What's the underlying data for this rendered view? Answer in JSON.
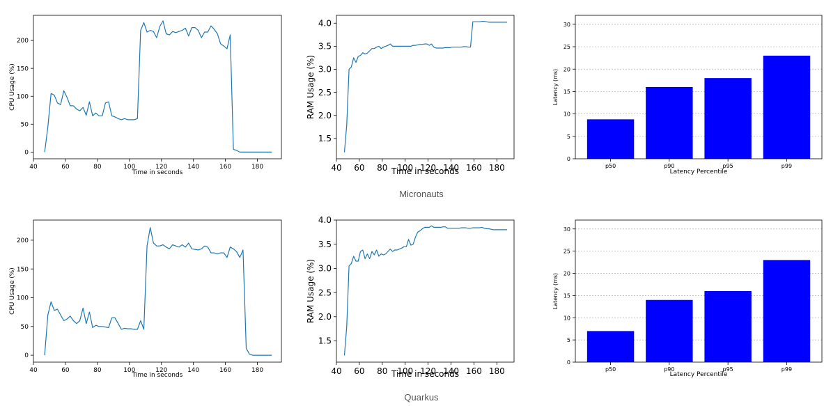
{
  "captions": [
    "Micronauts",
    "Quarkus"
  ],
  "colors": {
    "line": "#1f77b4",
    "bar": "#0000ff",
    "grid": "#b0b0b0"
  },
  "chart_data": [
    {
      "type": "line",
      "group": "Micronauts",
      "xlabel": "Time in seconds",
      "ylabel": "CPU Usage (%)",
      "xlim": [
        40,
        195
      ],
      "ylim": [
        -12,
        245
      ],
      "xticks": [
        40,
        60,
        80,
        100,
        120,
        140,
        160,
        180
      ],
      "yticks": [
        0,
        50,
        100,
        150,
        200
      ],
      "x": [
        47,
        49,
        51,
        53,
        55,
        57,
        59,
        61,
        63,
        65,
        67,
        69,
        71,
        73,
        75,
        77,
        79,
        81,
        83,
        85,
        87,
        89,
        91,
        93,
        95,
        97,
        99,
        101,
        103,
        105,
        107,
        109,
        111,
        113,
        115,
        117,
        119,
        121,
        123,
        125,
        127,
        129,
        131,
        133,
        135,
        137,
        139,
        141,
        143,
        145,
        147,
        149,
        151,
        153,
        155,
        157,
        159,
        161,
        163,
        165,
        167,
        169,
        171,
        173,
        175,
        177,
        179,
        181,
        183,
        185,
        187,
        189
      ],
      "y": [
        0,
        45,
        105,
        102,
        88,
        85,
        110,
        98,
        83,
        83,
        77,
        74,
        80,
        66,
        90,
        65,
        70,
        65,
        65,
        88,
        90,
        65,
        63,
        60,
        58,
        60,
        58,
        58,
        58,
        60,
        218,
        232,
        215,
        218,
        216,
        205,
        225,
        235,
        212,
        210,
        216,
        214,
        216,
        218,
        222,
        208,
        223,
        223,
        218,
        205,
        215,
        215,
        226,
        220,
        212,
        194,
        190,
        185,
        210,
        5,
        3,
        0,
        0,
        0,
        0,
        0,
        0,
        0,
        0,
        0,
        0,
        0
      ]
    },
    {
      "type": "line",
      "group": "Micronauts",
      "xlabel": "Time in seconds",
      "ylabel": "RAM Usage (%)",
      "xlim": [
        40,
        195
      ],
      "ylim": [
        1.06,
        4.17
      ],
      "xticks": [
        40,
        60,
        80,
        100,
        120,
        140,
        160,
        180
      ],
      "yticks": [
        1.5,
        2.0,
        2.5,
        3.0,
        3.5,
        4.0
      ],
      "x": [
        47,
        49,
        51,
        53,
        55,
        57,
        59,
        61,
        63,
        65,
        67,
        69,
        71,
        73,
        75,
        77,
        79,
        81,
        83,
        85,
        87,
        89,
        91,
        93,
        95,
        97,
        99,
        101,
        103,
        105,
        107,
        109,
        111,
        113,
        115,
        117,
        119,
        121,
        123,
        125,
        127,
        129,
        131,
        133,
        135,
        137,
        139,
        141,
        143,
        145,
        147,
        149,
        151,
        153,
        155,
        157,
        159,
        161,
        163,
        165,
        167,
        169,
        171,
        173,
        175,
        177,
        179,
        181,
        183,
        185,
        187,
        189
      ],
      "y": [
        1.2,
        1.8,
        3.0,
        3.05,
        3.25,
        3.15,
        3.28,
        3.3,
        3.36,
        3.33,
        3.35,
        3.4,
        3.45,
        3.45,
        3.48,
        3.5,
        3.45,
        3.48,
        3.5,
        3.52,
        3.55,
        3.5,
        3.5,
        3.5,
        3.5,
        3.5,
        3.5,
        3.5,
        3.5,
        3.5,
        3.52,
        3.52,
        3.53,
        3.54,
        3.54,
        3.55,
        3.55,
        3.52,
        3.55,
        3.48,
        3.46,
        3.46,
        3.46,
        3.46,
        3.47,
        3.47,
        3.47,
        3.48,
        3.48,
        3.48,
        3.48,
        3.48,
        3.49,
        3.49,
        3.48,
        3.48,
        4.03,
        4.03,
        4.03,
        4.03,
        4.04,
        4.04,
        4.03,
        4.02,
        4.02,
        4.02,
        4.02,
        4.02,
        4.02,
        4.02,
        4.02,
        4.02
      ]
    },
    {
      "type": "bar",
      "group": "Micronauts",
      "xlabel": "Latency Percentile",
      "ylabel": "Latency (ms)",
      "categories": [
        "p50",
        "p90",
        "p95",
        "p99"
      ],
      "values": [
        8.8,
        16,
        18,
        23
      ],
      "ylim": [
        0,
        32
      ],
      "yticks": [
        0,
        5,
        10,
        15,
        20,
        25,
        30
      ]
    },
    {
      "type": "line",
      "group": "Quarkus",
      "xlabel": "Time in seconds",
      "ylabel": "CPU Usage (%)",
      "xlim": [
        40,
        195
      ],
      "ylim": [
        -12,
        235
      ],
      "xticks": [
        40,
        60,
        80,
        100,
        120,
        140,
        160,
        180
      ],
      "yticks": [
        0,
        50,
        100,
        150,
        200
      ],
      "x": [
        47,
        49,
        51,
        53,
        55,
        57,
        59,
        61,
        63,
        65,
        67,
        69,
        71,
        73,
        75,
        77,
        79,
        81,
        83,
        85,
        87,
        89,
        91,
        93,
        95,
        97,
        99,
        101,
        103,
        105,
        107,
        109,
        111,
        113,
        115,
        117,
        119,
        121,
        123,
        125,
        127,
        129,
        131,
        133,
        135,
        137,
        139,
        141,
        143,
        145,
        147,
        149,
        151,
        153,
        155,
        157,
        159,
        161,
        163,
        165,
        167,
        169,
        171,
        173,
        175,
        177,
        179,
        181,
        183,
        185,
        187,
        189
      ],
      "y": [
        0,
        70,
        93,
        78,
        80,
        70,
        60,
        63,
        68,
        60,
        55,
        60,
        82,
        55,
        75,
        48,
        52,
        50,
        50,
        49,
        48,
        65,
        65,
        55,
        45,
        47,
        46,
        46,
        45,
        45,
        60,
        45,
        190,
        222,
        195,
        190,
        190,
        192,
        188,
        185,
        192,
        190,
        188,
        192,
        188,
        195,
        185,
        184,
        183,
        185,
        190,
        188,
        178,
        178,
        176,
        178,
        178,
        170,
        188,
        185,
        180,
        170,
        183,
        12,
        2,
        0,
        0,
        0,
        0,
        0,
        0,
        0
      ]
    },
    {
      "type": "line",
      "group": "Quarkus",
      "xlabel": "Time in seconds",
      "ylabel": "RAM Usage (%)",
      "xlim": [
        40,
        195
      ],
      "ylim": [
        1.06,
        4.0
      ],
      "xticks": [
        40,
        60,
        80,
        100,
        120,
        140,
        160,
        180
      ],
      "yticks": [
        1.5,
        2.0,
        2.5,
        3.0,
        3.5,
        4.0
      ],
      "x": [
        47,
        49,
        51,
        53,
        55,
        57,
        59,
        61,
        63,
        65,
        67,
        69,
        71,
        73,
        75,
        77,
        79,
        81,
        83,
        85,
        87,
        89,
        91,
        93,
        95,
        97,
        99,
        101,
        103,
        105,
        107,
        109,
        111,
        113,
        115,
        117,
        119,
        121,
        123,
        125,
        127,
        129,
        131,
        133,
        135,
        137,
        139,
        141,
        143,
        145,
        147,
        149,
        151,
        153,
        155,
        157,
        159,
        161,
        163,
        165,
        167,
        169,
        171,
        173,
        175,
        177,
        179,
        181,
        183,
        185,
        187,
        189
      ],
      "y": [
        1.2,
        1.8,
        3.05,
        3.1,
        3.25,
        3.15,
        3.15,
        3.35,
        3.38,
        3.2,
        3.3,
        3.2,
        3.35,
        3.28,
        3.38,
        3.25,
        3.3,
        3.28,
        3.3,
        3.35,
        3.4,
        3.35,
        3.38,
        3.38,
        3.4,
        3.42,
        3.45,
        3.45,
        3.6,
        3.48,
        3.5,
        3.65,
        3.75,
        3.78,
        3.82,
        3.85,
        3.85,
        3.85,
        3.88,
        3.85,
        3.85,
        3.85,
        3.85,
        3.86,
        3.86,
        3.83,
        3.83,
        3.83,
        3.83,
        3.83,
        3.83,
        3.84,
        3.84,
        3.84,
        3.83,
        3.83,
        3.84,
        3.84,
        3.84,
        3.84,
        3.85,
        3.83,
        3.82,
        3.82,
        3.81,
        3.8,
        3.8,
        3.8,
        3.8,
        3.8,
        3.8,
        3.8
      ]
    },
    {
      "type": "bar",
      "group": "Quarkus",
      "xlabel": "Latency Percentile",
      "ylabel": "Latency (ms)",
      "categories": [
        "p50",
        "p90",
        "p95",
        "p99"
      ],
      "values": [
        7,
        14,
        16,
        23
      ],
      "ylim": [
        0,
        32
      ],
      "yticks": [
        0,
        5,
        10,
        15,
        20,
        25,
        30
      ]
    }
  ]
}
